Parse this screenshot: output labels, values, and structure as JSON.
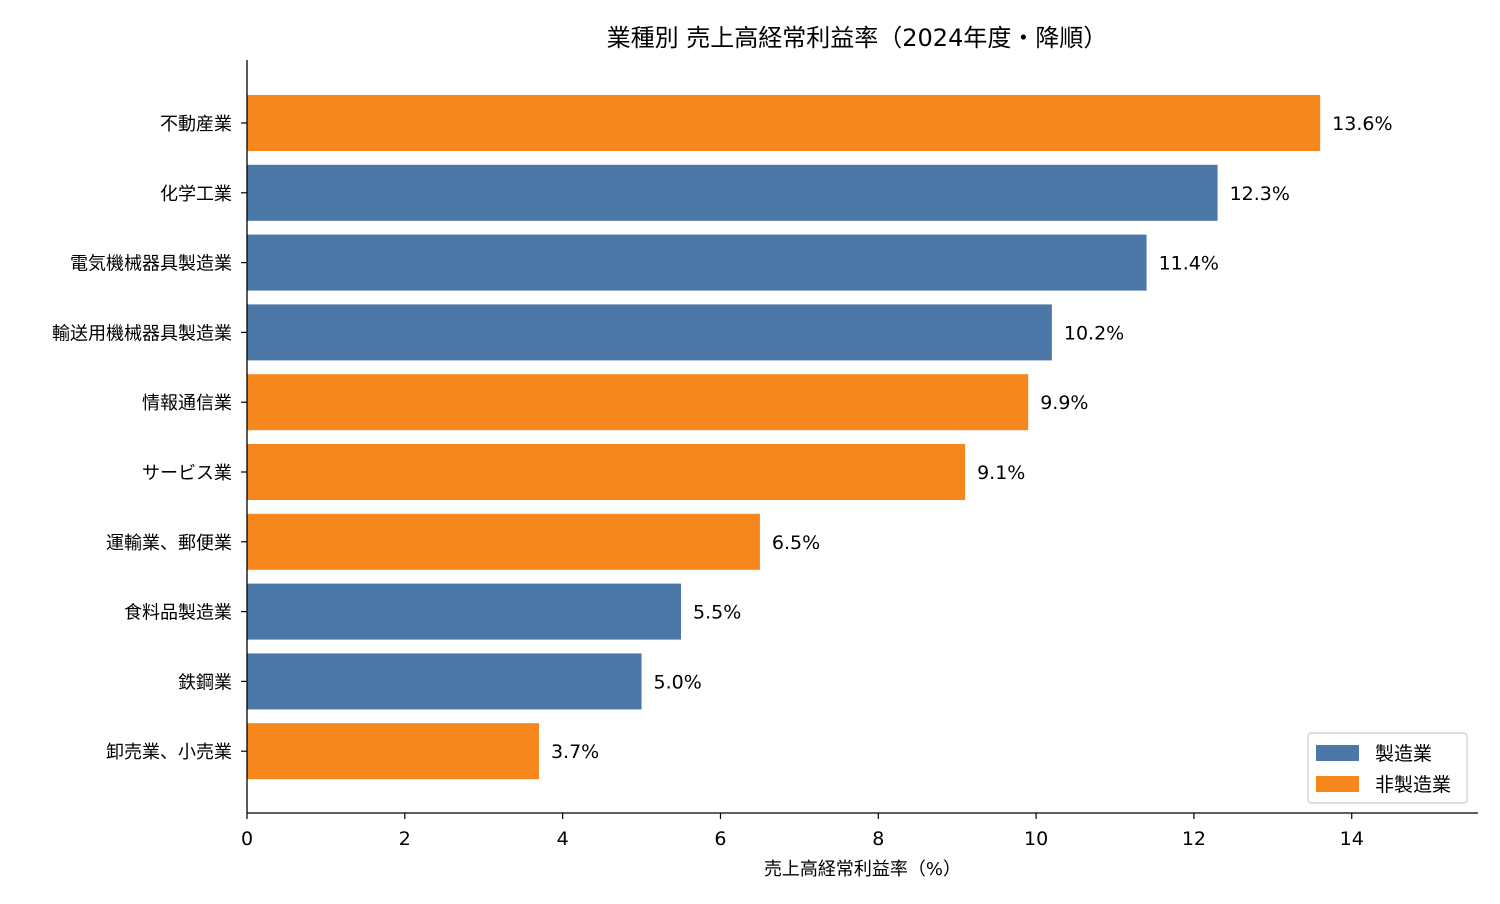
{
  "chart_data": {
    "type": "bar",
    "orientation": "horizontal",
    "title": "業種別 売上高経常利益率（2024年度・降順）",
    "xlabel": "売上高経常利益率（%）",
    "ylabel": "",
    "xlim": [
      0,
      15.6
    ],
    "xticks": [
      0,
      2,
      4,
      6,
      8,
      10,
      12,
      14
    ],
    "value_label_suffix": "%",
    "grid": false,
    "legend_position": "bottom-right",
    "categories": [
      "不動産業",
      "化学工業",
      "電気機械器具製造業",
      "輸送用機械器具製造業",
      "情報通信業",
      "サービス業",
      "運輸業、郵便業",
      "食料品製造業",
      "鉄鋼業",
      "卸売業、小売業"
    ],
    "values": [
      13.6,
      12.3,
      11.4,
      10.2,
      9.9,
      9.1,
      6.5,
      5.5,
      5.0,
      3.7
    ],
    "groups": [
      "非製造業",
      "製造業",
      "製造業",
      "製造業",
      "非製造業",
      "非製造業",
      "非製造業",
      "製造業",
      "製造業",
      "非製造業"
    ],
    "legend": [
      {
        "name": "製造業",
        "color": "#4c78a8"
      },
      {
        "name": "非製造業",
        "color": "#f5871c"
      }
    ]
  }
}
